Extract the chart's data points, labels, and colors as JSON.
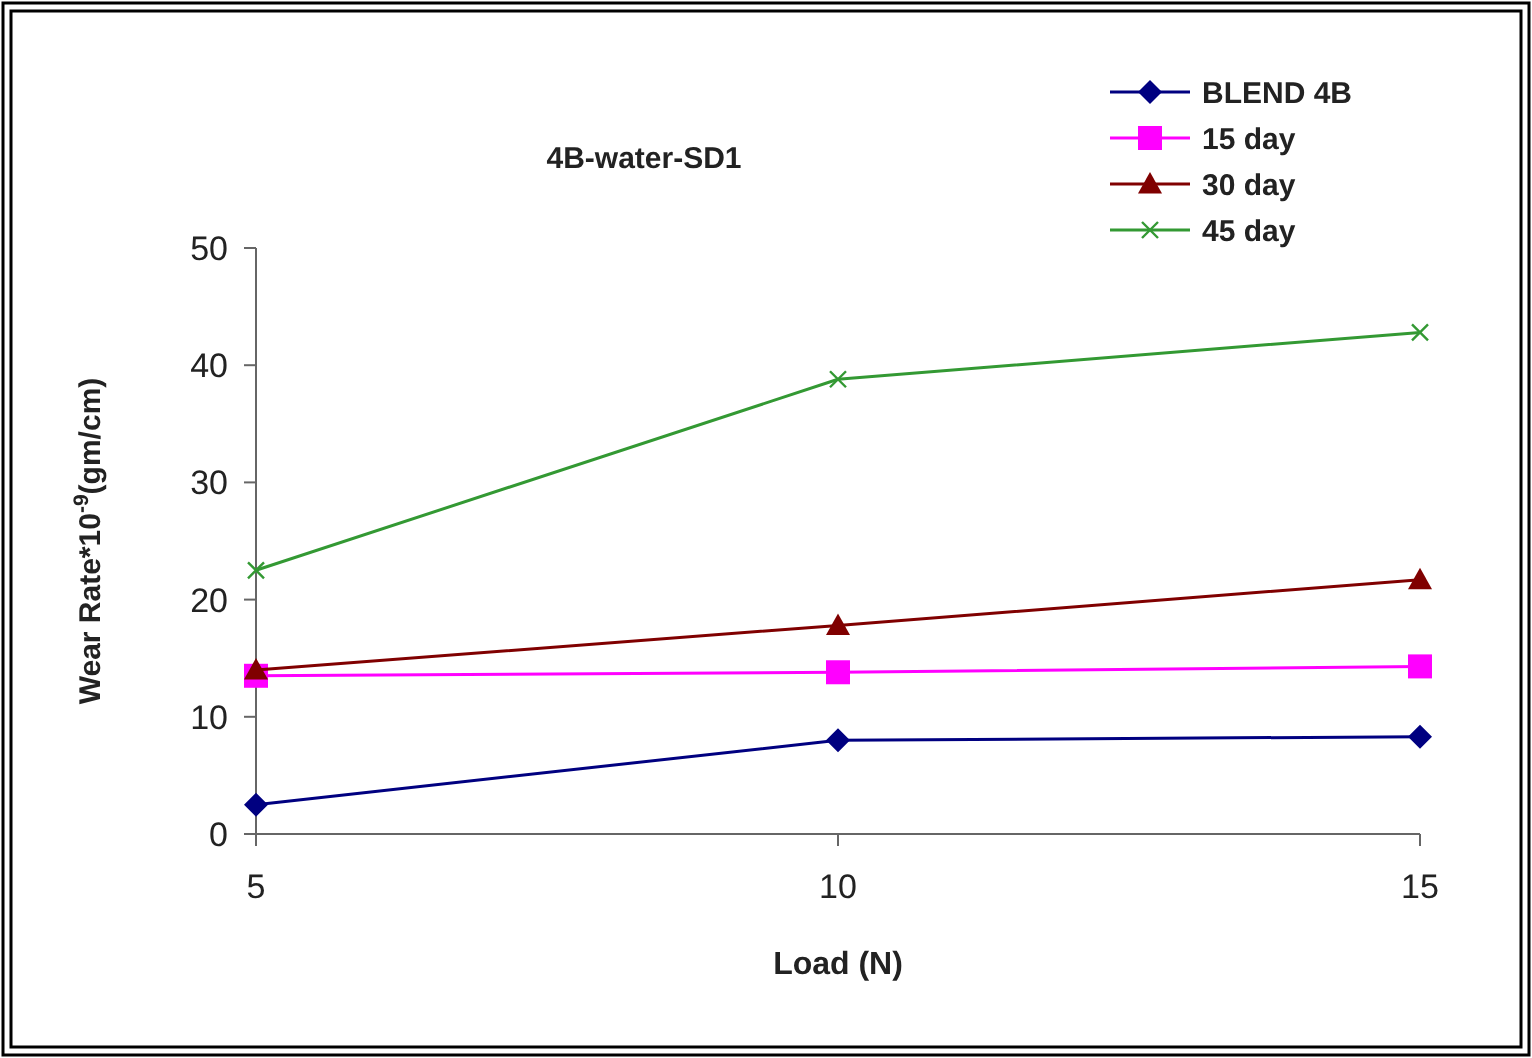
{
  "chart_data": {
    "type": "line",
    "title": "4B-water-SD1",
    "xlabel": "Load (N)",
    "ylabel": "Wear Rate*10$^{-9}$(gm/cm)",
    "x": [
      5,
      10,
      15
    ],
    "series": [
      {
        "name": "BLEND 4B",
        "color": "#000080",
        "marker": "diamond",
        "values": [
          2.5,
          8,
          8.3
        ]
      },
      {
        "name": "15 day",
        "color": "#ff00ff",
        "marker": "square",
        "values": [
          13.5,
          13.8,
          14.3
        ]
      },
      {
        "name": "30 day",
        "color": "#800000",
        "marker": "triangle",
        "values": [
          14,
          17.8,
          21.7
        ]
      },
      {
        "name": "45 day",
        "color": "#339933",
        "marker": "cross",
        "values": [
          22.5,
          38.8,
          42.8
        ]
      }
    ],
    "xlim": [
      5,
      15
    ],
    "xticks": [
      5,
      10,
      15
    ],
    "ylim": [
      0,
      50
    ],
    "yticks": [
      0,
      10,
      20,
      30,
      40,
      50
    ],
    "grid": false,
    "legend": "top right",
    "line_style": "solid"
  }
}
